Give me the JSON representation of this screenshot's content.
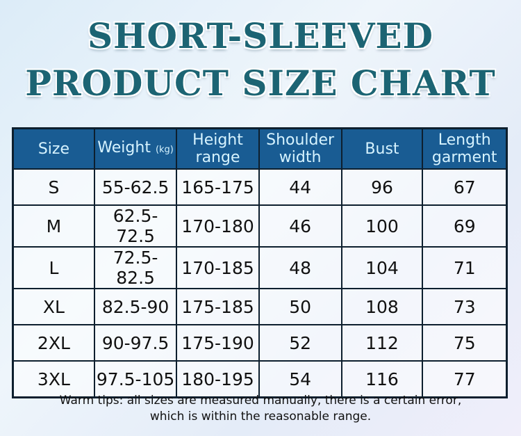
{
  "title": {
    "line1": "SHORT-SLEEVED",
    "line2": "PRODUCT SIZE CHART"
  },
  "table": {
    "headers": [
      {
        "main": "Size",
        "sub": ""
      },
      {
        "main": "Weight",
        "sub": "(kg)"
      },
      {
        "main": "Height range",
        "sub": ""
      },
      {
        "main": "Shoulder width",
        "sub": ""
      },
      {
        "main": "Bust",
        "sub": ""
      },
      {
        "main": "Length garment",
        "sub": ""
      }
    ],
    "rows": [
      [
        "S",
        "55-62.5",
        "165-175",
        "44",
        "96",
        "67"
      ],
      [
        "M",
        "62.5-72.5",
        "170-180",
        "46",
        "100",
        "69"
      ],
      [
        "L",
        "72.5-82.5",
        "170-185",
        "48",
        "104",
        "71"
      ],
      [
        "XL",
        "82.5-90",
        "175-185",
        "50",
        "108",
        "73"
      ],
      [
        "2XL",
        "90-97.5",
        "175-190",
        "52",
        "112",
        "75"
      ],
      [
        "3XL",
        "97.5-105",
        "180-195",
        "54",
        "116",
        "77"
      ]
    ]
  },
  "tips": {
    "line1": "Warm tips: all sizes are measured manually, there is a certain error,",
    "line2": "which is within the reasonable range."
  },
  "colors": {
    "header_bg": "#195c93",
    "header_text": "#d6f3ff",
    "title": "#1c6473"
  }
}
